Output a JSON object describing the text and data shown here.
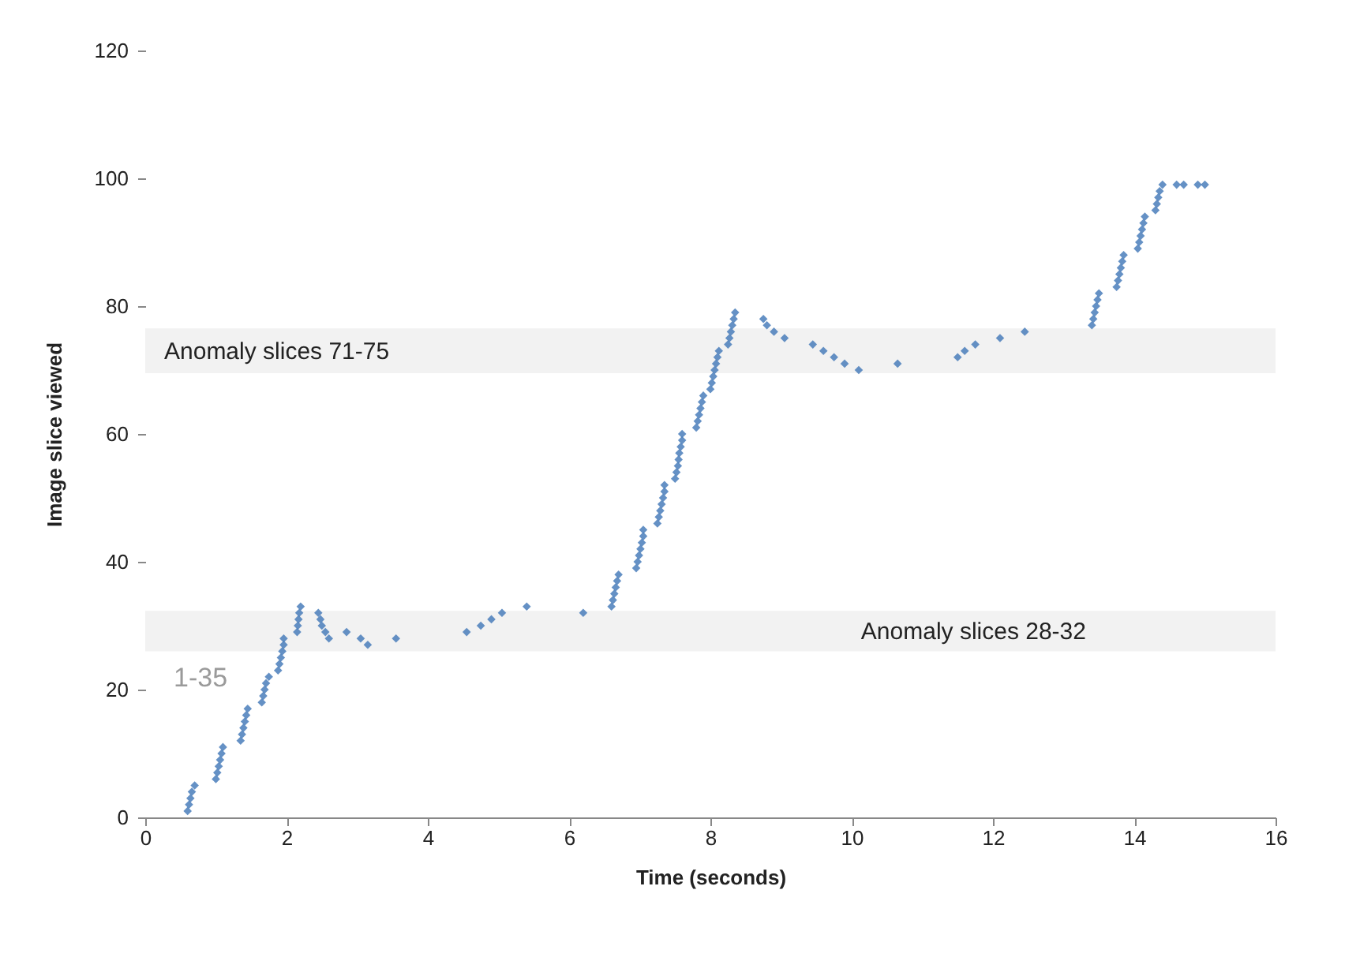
{
  "chart_data": {
    "type": "scatter",
    "xlabel": "Time (seconds)",
    "ylabel": "Image slice viewed",
    "xlim": [
      0,
      16
    ],
    "xticks": [
      0,
      2,
      4,
      6,
      8,
      10,
      12,
      14,
      16
    ],
    "ylim": [
      0,
      120
    ],
    "yticks": [
      0,
      20,
      40,
      60,
      80,
      100,
      120
    ],
    "grid": false,
    "marker": "diamond",
    "bands": [
      {
        "axis": "y",
        "from": 69.5,
        "to": 76.5,
        "label": "Anomaly  slices 71-75",
        "color": "#f2f2f2"
      },
      {
        "axis": "y",
        "from": 26,
        "to": 32.3,
        "label": "Anomaly slices  28-32",
        "color": "#f2f2f2"
      }
    ],
    "annotations": [
      "1-35"
    ],
    "series": [
      {
        "color": "#4a7ebb",
        "x": [
          0.6,
          0.62,
          0.64,
          0.66,
          0.7,
          1.0,
          1.02,
          1.04,
          1.06,
          1.08,
          1.1,
          1.35,
          1.37,
          1.39,
          1.41,
          1.43,
          1.45,
          1.65,
          1.67,
          1.69,
          1.71,
          1.75,
          1.88,
          1.9,
          1.92,
          1.94,
          1.96,
          1.96,
          2.15,
          2.16,
          2.17,
          2.18,
          2.2,
          2.45,
          2.48,
          2.5,
          2.55,
          2.6,
          2.85,
          3.05,
          3.15,
          3.55,
          4.55,
          4.75,
          4.9,
          5.05,
          5.4,
          6.2,
          6.6,
          6.62,
          6.64,
          6.66,
          6.68,
          6.7,
          6.95,
          6.97,
          6.99,
          7.01,
          7.03,
          7.05,
          7.05,
          7.25,
          7.27,
          7.29,
          7.31,
          7.33,
          7.35,
          7.35,
          7.5,
          7.52,
          7.54,
          7.55,
          7.56,
          7.58,
          7.6,
          7.6,
          7.8,
          7.82,
          7.84,
          7.86,
          7.88,
          7.9,
          8.0,
          8.02,
          8.04,
          8.06,
          8.08,
          8.1,
          8.12,
          8.25,
          8.27,
          8.29,
          8.31,
          8.33,
          8.35,
          8.75,
          8.8,
          8.9,
          9.05,
          9.45,
          9.6,
          9.75,
          9.9,
          10.1,
          10.65,
          11.5,
          11.6,
          11.75,
          12.1,
          12.45,
          13.4,
          13.42,
          13.44,
          13.46,
          13.48,
          13.5,
          13.75,
          13.77,
          13.79,
          13.81,
          13.83,
          13.85,
          14.05,
          14.07,
          14.09,
          14.11,
          14.13,
          14.15,
          14.3,
          14.32,
          14.34,
          14.36,
          14.4,
          14.6,
          14.7,
          14.9,
          15.0
        ],
        "values": [
          1,
          2,
          3,
          4,
          5,
          6,
          7,
          8,
          9,
          10,
          11,
          12,
          13,
          14,
          15,
          16,
          17,
          18,
          19,
          20,
          21,
          22,
          23,
          24,
          25,
          26,
          27,
          28,
          29,
          30,
          31,
          32,
          33,
          32,
          31,
          30,
          29,
          28,
          29,
          28,
          27,
          28,
          29,
          30,
          31,
          32,
          33,
          32,
          33,
          34,
          35,
          36,
          37,
          38,
          39,
          40,
          41,
          42,
          43,
          44,
          45,
          46,
          47,
          48,
          49,
          50,
          51,
          52,
          53,
          54,
          55,
          56,
          57,
          58,
          59,
          60,
          61,
          62,
          63,
          64,
          65,
          66,
          67,
          68,
          69,
          70,
          71,
          72,
          73,
          74,
          75,
          76,
          77,
          78,
          79,
          78,
          77,
          76,
          75,
          74,
          73,
          72,
          71,
          70,
          71,
          72,
          73,
          74,
          75,
          76,
          77,
          78,
          79,
          80,
          81,
          82,
          83,
          84,
          85,
          86,
          87,
          88,
          89,
          90,
          91,
          92,
          93,
          94,
          95,
          96,
          97,
          98,
          99,
          99,
          99,
          99,
          99
        ]
      }
    ]
  }
}
